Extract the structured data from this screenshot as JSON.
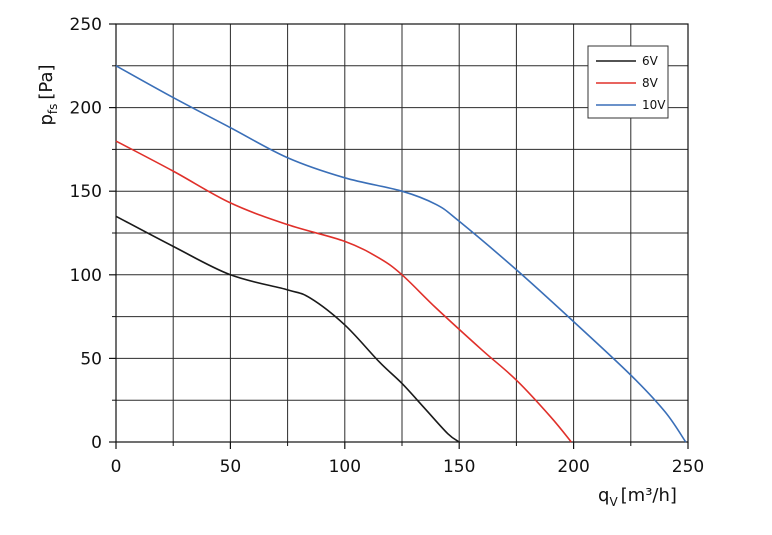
{
  "chart_data": {
    "type": "line",
    "title": "",
    "xlabel": {
      "main": "q",
      "sub": "V",
      "unit": "[m³/h]"
    },
    "ylabel": {
      "main": "p",
      "sub": "fs",
      "unit": "[Pa]"
    },
    "xlim": [
      0,
      250
    ],
    "ylim": [
      0,
      250
    ],
    "x_ticks": [
      0,
      50,
      100,
      150,
      200,
      250
    ],
    "y_ticks": [
      0,
      50,
      100,
      150,
      200,
      250
    ],
    "x_minor_step": 25,
    "y_minor_step": 25,
    "grid": true,
    "legend_position": "top-right",
    "series": [
      {
        "name": "6V",
        "color": "#1a1a1a",
        "x": [
          0,
          25,
          50,
          75,
          85,
          100,
          115,
          125,
          135,
          145,
          150
        ],
        "y": [
          135,
          117,
          100,
          91,
          86,
          70,
          48,
          35,
          20,
          5,
          0
        ]
      },
      {
        "name": "8V",
        "color": "#e0302a",
        "x": [
          0,
          25,
          50,
          75,
          100,
          115,
          125,
          140,
          160,
          175,
          190,
          199
        ],
        "y": [
          180,
          162,
          143,
          130,
          120,
          110,
          100,
          80,
          55,
          37,
          15,
          0
        ]
      },
      {
        "name": "10V",
        "color": "#3a6fb8",
        "x": [
          0,
          25,
          50,
          75,
          100,
          125,
          140,
          150,
          175,
          200,
          225,
          240,
          249
        ],
        "y": [
          225,
          206,
          188,
          170,
          158,
          150,
          142,
          132,
          103,
          72,
          40,
          18,
          0
        ]
      }
    ]
  }
}
